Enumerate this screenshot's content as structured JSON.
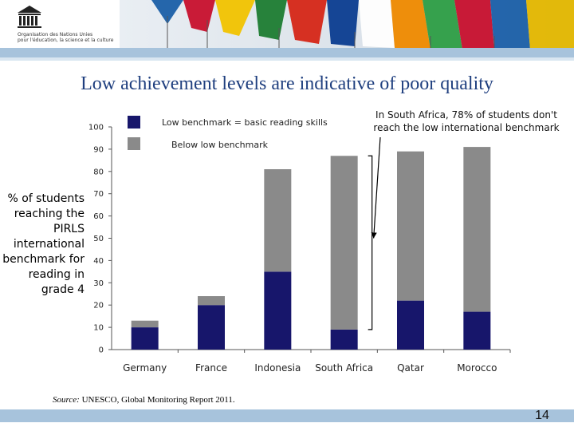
{
  "header": {
    "org_line1": "Organisation des Nations Unies",
    "org_line2": "pour l'éducation, la science et la culture"
  },
  "title": "Low achievement levels are indicative of poor quality",
  "colors": {
    "low_benchmark": "#17166b",
    "below_low": "#8a8a8a",
    "accent_band": "#a7c3dc"
  },
  "legend": [
    {
      "label": "Low benchmark = basic reading skills",
      "color": "#17166b"
    },
    {
      "label": "Below low benchmark",
      "color": "#8a8a8a"
    }
  ],
  "annotation": "In South Africa, 78% of students don't reach the low international benchmark",
  "ylabel": "% of students reaching the PIRLS international benchmark for reading in grade 4",
  "source_label": "Source:",
  "source_text": " UNESCO, Global Monitoring Report 2011.",
  "page_number": "14",
  "chart_data": {
    "type": "bar",
    "stacked": true,
    "categories": [
      "Germany",
      "France",
      "Indonesia",
      "South Africa",
      "Qatar",
      "Morocco"
    ],
    "series": [
      {
        "name": "Low benchmark = basic reading skills",
        "values": [
          10,
          20,
          35,
          9,
          22,
          17
        ]
      },
      {
        "name": "Below low benchmark",
        "values": [
          3,
          4,
          46,
          78,
          67,
          74
        ]
      }
    ],
    "ylim": [
      0,
      100
    ],
    "yticks": [
      0,
      10,
      20,
      30,
      40,
      50,
      60,
      70,
      80,
      90,
      100
    ],
    "grid": false,
    "legend_position": "top"
  }
}
